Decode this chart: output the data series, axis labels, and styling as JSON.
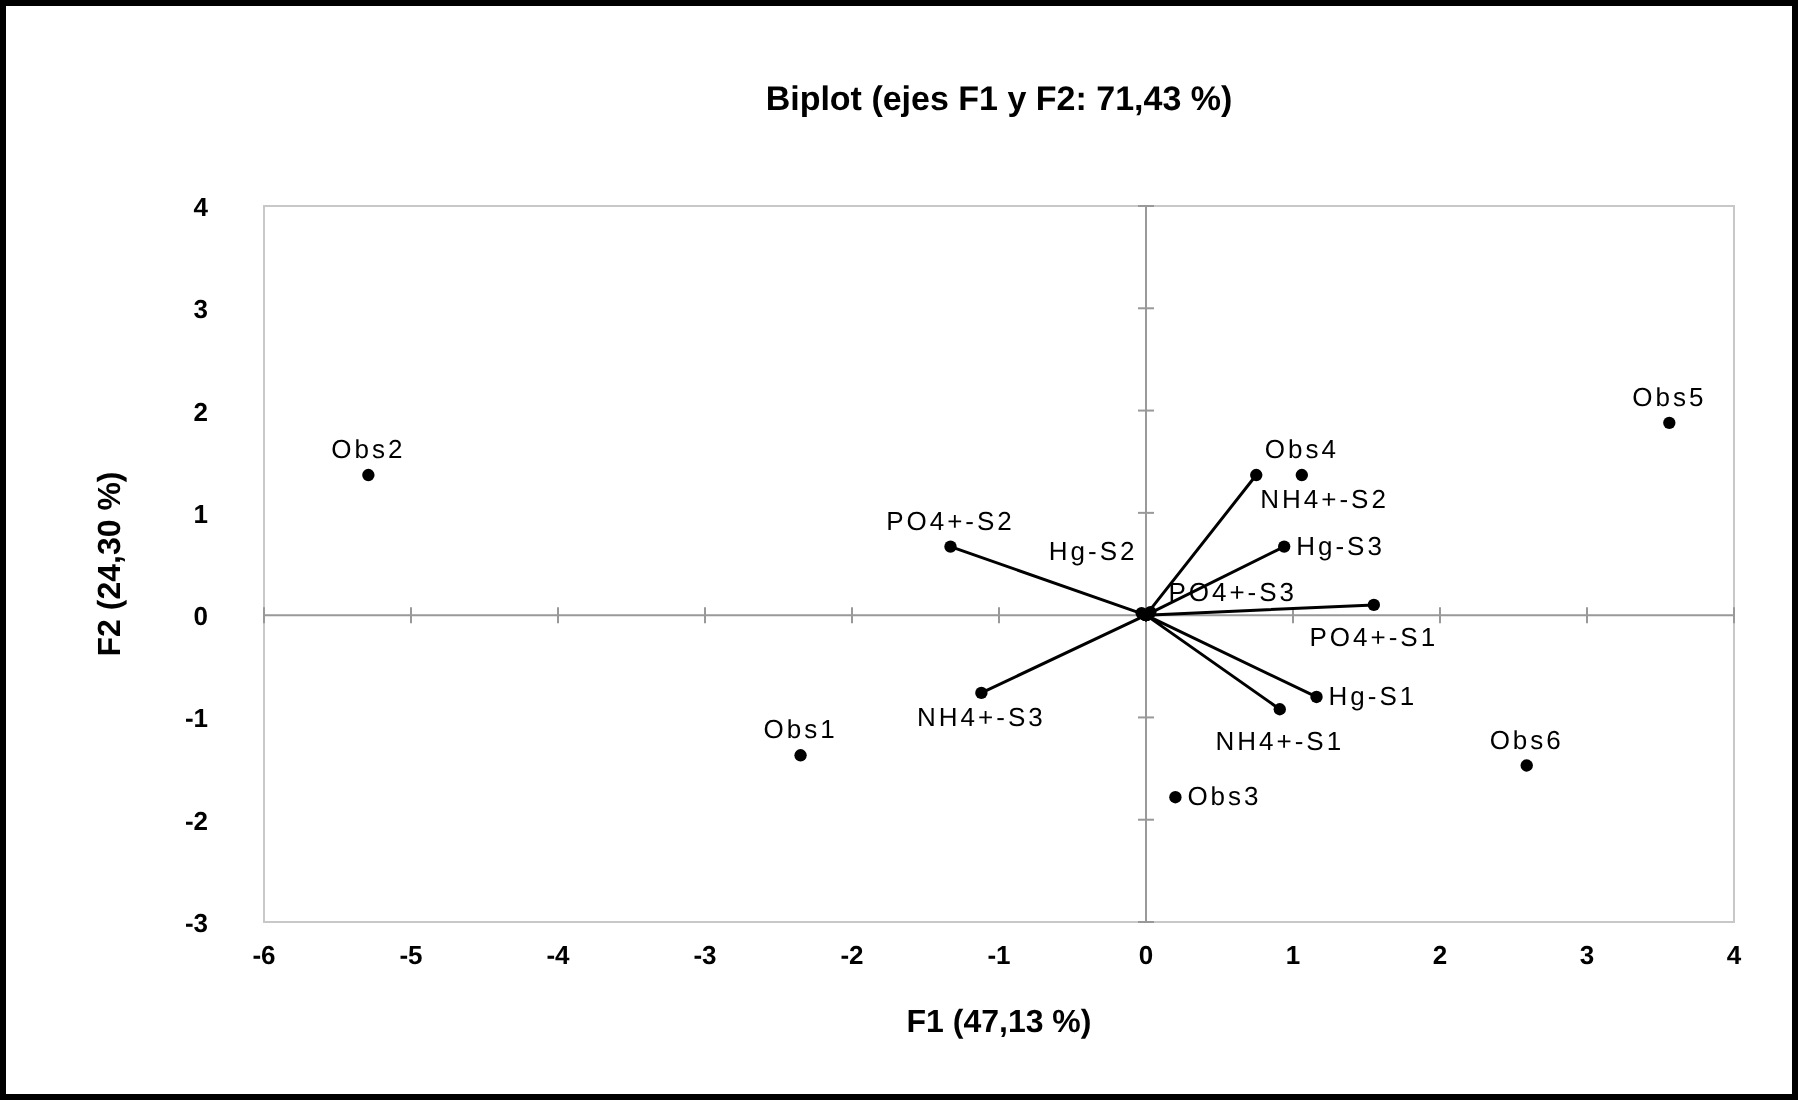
{
  "chart_data": {
    "type": "scatter",
    "title": "Biplot (ejes F1 y F2: 71,43 %)",
    "xlabel": "F1 (47,13 %)",
    "ylabel": "F2 (24,30 %)",
    "xlim": [
      -6,
      4
    ],
    "xticks": [
      -6,
      -5,
      -4,
      -3,
      -2,
      -1,
      0,
      1,
      2,
      3,
      4
    ],
    "ylim": [
      -3,
      4
    ],
    "yticks": [
      -3,
      -2,
      -1,
      0,
      1,
      2,
      3,
      4
    ],
    "marker": "circle",
    "series": [
      {
        "color": "#000000",
        "x": [
          -2.35,
          -5.29,
          0.2,
          1.06,
          3.56,
          2.59
        ],
        "values": [
          -1.37,
          1.37,
          -1.78,
          1.37,
          1.88,
          -1.47
        ],
        "value_labels": [
          "Obs1",
          "Obs2",
          "Obs3",
          "Obs4",
          "Obs5",
          "Obs6"
        ]
      },
      {
        "type": "line",
        "color": "#000000",
        "x": [
          0,
          1.16,
          0,
          -0.03,
          0,
          0.94,
          0,
          0.91,
          0,
          0.75,
          0,
          -1.12,
          0,
          1.55,
          0,
          -1.33,
          0,
          0.03
        ],
        "values": [
          0,
          -0.8,
          0,
          0.02,
          0,
          0.67,
          0,
          -0.92,
          0,
          1.37,
          0,
          -0.76,
          0,
          0.1,
          0,
          0.67,
          0,
          0.03
        ],
        "value_labels": [
          null,
          "Hg-S1",
          null,
          "Hg-S2",
          null,
          "Hg-S3",
          null,
          "NH4+-S1",
          null,
          "NH4+-S2",
          null,
          "NH4+-S3",
          null,
          "PO4+-S1",
          null,
          "PO4+-S2",
          null,
          "PO4+-S3"
        ]
      }
    ]
  }
}
